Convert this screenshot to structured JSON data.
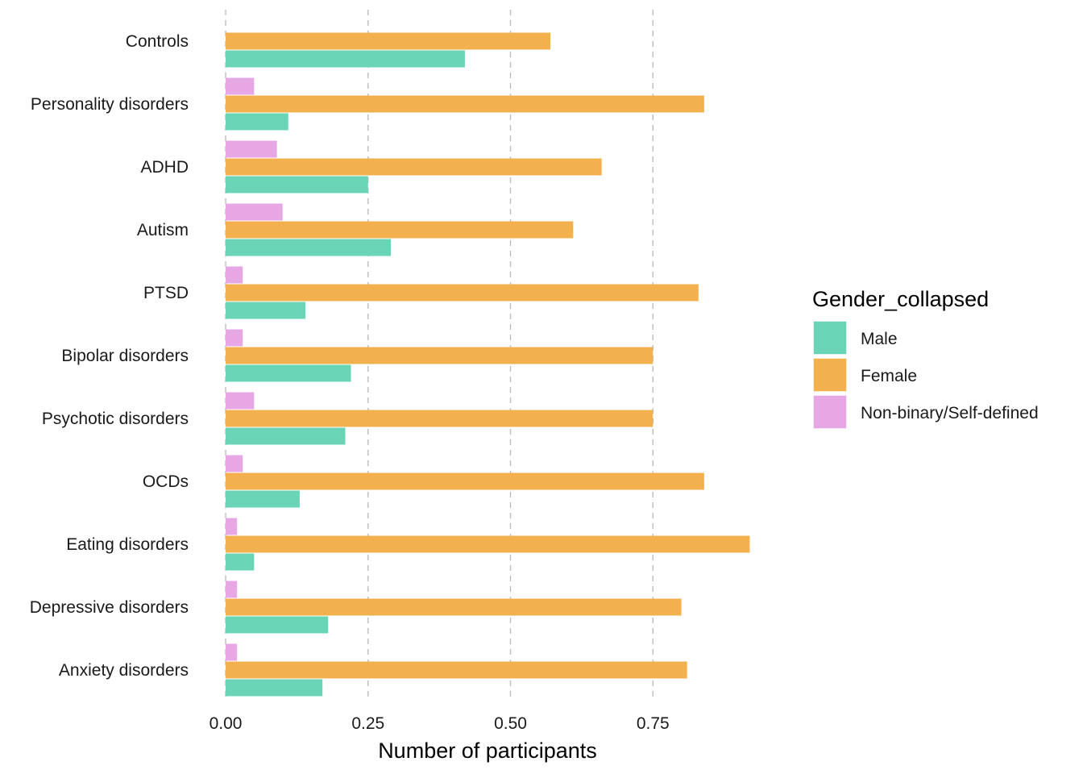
{
  "chart_data": {
    "type": "bar",
    "orientation": "horizontal",
    "categories": [
      "Controls",
      "Personality disorders",
      "ADHD",
      "Autism",
      "PTSD",
      "Bipolar disorders",
      "Psychotic disorders",
      "OCDs",
      "Eating disorders",
      "Depressive disorders",
      "Anxiety disorders"
    ],
    "series": [
      {
        "name": "Male",
        "color": "#6AD4B7",
        "values": [
          0.42,
          0.11,
          0.25,
          0.29,
          0.14,
          0.22,
          0.21,
          0.13,
          0.05,
          0.18,
          0.17
        ]
      },
      {
        "name": "Female",
        "color": "#F2B04F",
        "values": [
          0.57,
          0.84,
          0.66,
          0.61,
          0.83,
          0.75,
          0.75,
          0.84,
          0.92,
          0.8,
          0.81
        ]
      },
      {
        "name": "Non-binary/Self-defined",
        "color": "#E7A6E4",
        "values": [
          null,
          0.05,
          0.09,
          0.1,
          0.03,
          0.03,
          0.05,
          0.03,
          0.02,
          0.02,
          0.02
        ]
      }
    ],
    "x_ticks": [
      "0.00",
      "0.25",
      "0.50",
      "0.75"
    ],
    "xlim": [
      0,
      1
    ],
    "xlabel": "Number of participants",
    "ylabel": "",
    "legend": {
      "title": "Gender_collapsed",
      "position": "right"
    },
    "grid": "vertical dashed major gridlines"
  }
}
